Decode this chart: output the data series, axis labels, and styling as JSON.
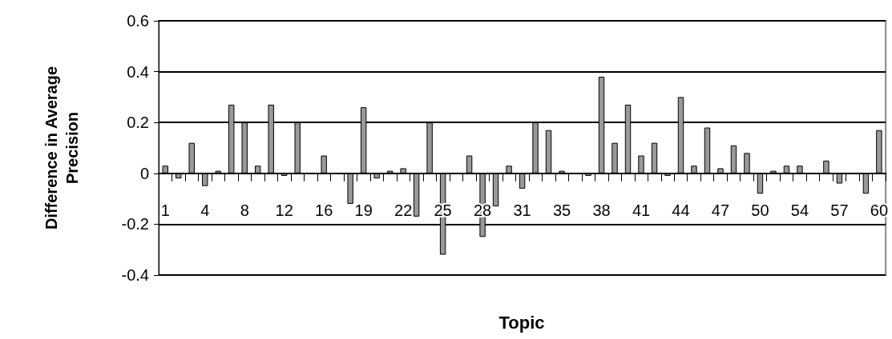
{
  "chart_data": {
    "type": "bar",
    "xlabel": "Topic",
    "ylabel": "Difference in Average Precision",
    "categories": [
      "1",
      null,
      null,
      "4",
      null,
      null,
      "8",
      null,
      null,
      "12",
      null,
      null,
      "16",
      null,
      null,
      "19",
      null,
      null,
      "22",
      null,
      null,
      "25",
      null,
      null,
      "28",
      null,
      null,
      "31",
      null,
      null,
      "35",
      null,
      null,
      "38",
      null,
      null,
      "41",
      null,
      null,
      "44",
      null,
      null,
      "47",
      null,
      null,
      "50",
      null,
      null,
      "54",
      null,
      null,
      "57",
      null,
      null,
      "60"
    ],
    "values": [
      0.03,
      -0.02,
      0.12,
      -0.05,
      0.01,
      0.27,
      0.2,
      0.03,
      0.27,
      -0.01,
      0.2,
      0,
      0.07,
      0,
      -0.12,
      0.26,
      -0.02,
      0.01,
      0.02,
      -0.17,
      0.2,
      -0.32,
      0,
      0.07,
      -0.25,
      -0.13,
      0.03,
      -0.06,
      0.2,
      0.17,
      0.01,
      0,
      -0.01,
      0.38,
      0.12,
      0.27,
      0.07,
      0.12,
      -0.01,
      0.3,
      0.03,
      0.18,
      0.02,
      0.11,
      0.08,
      -0.08,
      0.01,
      0.03,
      0.03,
      0,
      0.05,
      -0.04,
      0,
      -0.08,
      0.17
    ],
    "color": "#999999",
    "ylim": [
      -0.4,
      0.6
    ],
    "yticks": [
      -0.4,
      -0.2,
      0,
      0.2,
      0.4,
      0.6
    ],
    "grid": "y"
  }
}
